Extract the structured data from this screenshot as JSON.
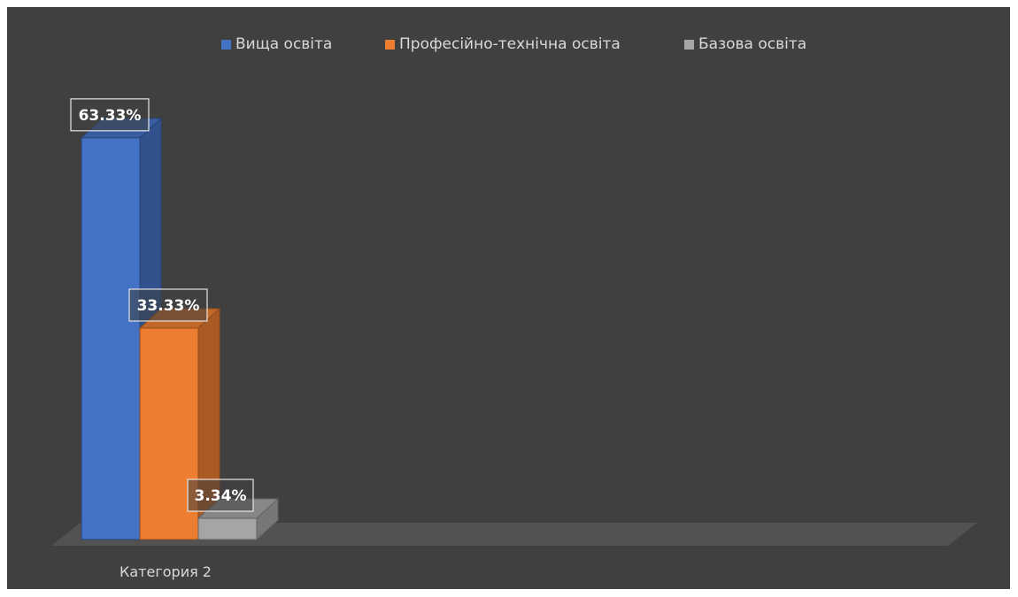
{
  "chart_data": {
    "type": "bar",
    "style": "3d-clustered-column",
    "categories": [
      "Категория 2"
    ],
    "series": [
      {
        "name": "Вища освіта",
        "values": [
          63.33
        ],
        "label": "63.33%",
        "color": "#4472c4"
      },
      {
        "name": "Професійно-технічна освіта",
        "values": [
          33.33
        ],
        "label": "33.33%",
        "color": "#ed7d31"
      },
      {
        "name": "Базова освіта",
        "values": [
          3.34
        ],
        "label": "3.34%",
        "color": "#a5a5a5"
      }
    ],
    "legend_position": "top",
    "grid": false,
    "value_axis_visible": false,
    "ylim": [
      0,
      70
    ],
    "background_color": "#404040"
  }
}
